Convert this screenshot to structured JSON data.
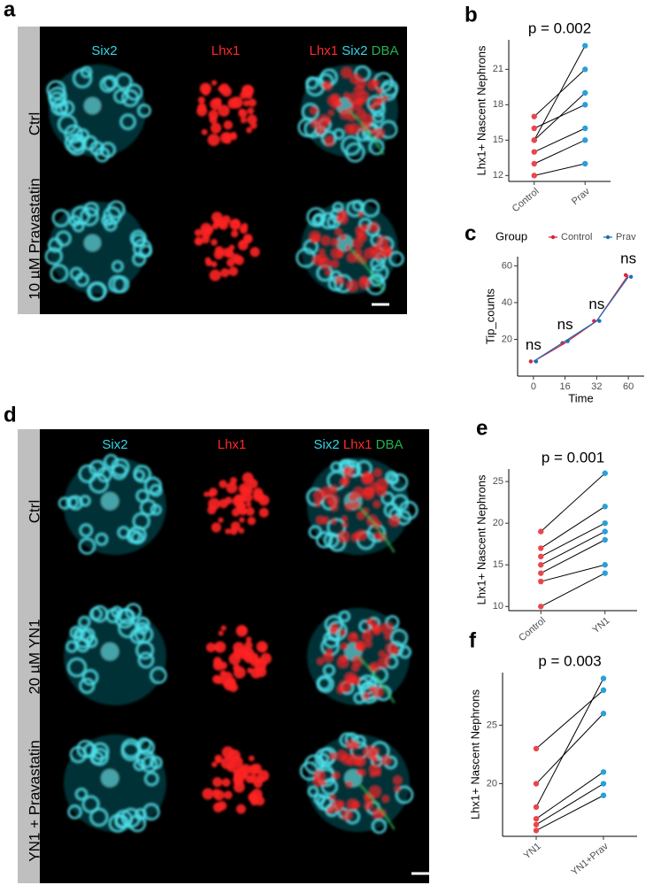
{
  "figure": {
    "panels": [
      "a",
      "b",
      "c",
      "d",
      "e",
      "f"
    ],
    "panel_a": {
      "columns": [
        "Six2",
        "Lhx1"
      ],
      "merge": [
        "Lhx1",
        "Six2",
        "DBA"
      ],
      "rows": [
        "Ctrl",
        "10 µM Pravastatin"
      ]
    },
    "panel_d": {
      "columns": [
        "Six2",
        "Lhx1"
      ],
      "merge": [
        "Six2",
        "Lhx1",
        "DBA"
      ],
      "rows": [
        "Ctrl",
        "20 µM YN1",
        "YN1 + Pravastatin"
      ]
    }
  },
  "chart_data": [
    {
      "type": "paired",
      "title": "p = 0.002",
      "ylabel": "Lhx1+ Nascent Nephrons",
      "categories": [
        "Control",
        "Prav"
      ],
      "colors": [
        "#e8474c",
        "#2b9fd9"
      ],
      "pairs": [
        [
          12,
          13
        ],
        [
          13,
          15
        ],
        [
          14,
          16
        ],
        [
          15,
          19
        ],
        [
          16,
          18
        ],
        [
          17,
          21
        ],
        [
          15,
          23
        ]
      ],
      "ylim": [
        11.5,
        23.5
      ],
      "yticks": [
        12,
        15,
        18,
        21
      ]
    },
    {
      "type": "line",
      "legend_title": "Group",
      "categories": [
        "0",
        "16",
        "32",
        "60"
      ],
      "series": [
        {
          "name": "Control",
          "color": "#d7263d",
          "values": [
            8,
            18,
            30,
            55
          ]
        },
        {
          "name": "Prav",
          "color": "#1f6fb5",
          "values": [
            8,
            19,
            30,
            54
          ]
        }
      ],
      "annotations": [
        "ns",
        "ns",
        "ns",
        "ns"
      ],
      "xlabel": "Time",
      "ylabel": "Tip_counts",
      "ylim": [
        0,
        65
      ],
      "yticks": [
        20,
        40,
        60
      ]
    },
    {
      "type": "paired",
      "title": "p = 0.001",
      "ylabel": "Lhx1+ Nascent Nephrons",
      "categories": [
        "Control",
        "YN1"
      ],
      "colors": [
        "#e8474c",
        "#2b9fd9"
      ],
      "pairs": [
        [
          10,
          14
        ],
        [
          13,
          15
        ],
        [
          14,
          18
        ],
        [
          15,
          19
        ],
        [
          16,
          20
        ],
        [
          17,
          22
        ],
        [
          19,
          26
        ]
      ],
      "ylim": [
        9.5,
        26.5
      ],
      "yticks": [
        10,
        15,
        20,
        25
      ]
    },
    {
      "type": "paired",
      "title": "p = 0.003",
      "ylabel": "Lhx1+ Nascent Nephrons",
      "categories": [
        "YN1",
        "YN1+Prav"
      ],
      "colors": [
        "#e8474c",
        "#2b9fd9"
      ],
      "pairs": [
        [
          16,
          19
        ],
        [
          16.5,
          20
        ],
        [
          17,
          21
        ],
        [
          18,
          29
        ],
        [
          20,
          26
        ],
        [
          23,
          28
        ]
      ],
      "ylim": [
        15.5,
        29.5
      ],
      "yticks": [
        20,
        25
      ]
    }
  ]
}
